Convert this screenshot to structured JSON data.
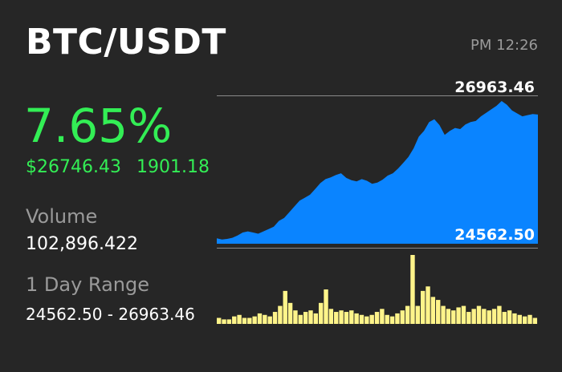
{
  "header": {
    "pair": "BTC/USDT",
    "time": "PM 12:26"
  },
  "stats": {
    "change_percent": "7.65%",
    "price": "$26746.43",
    "change_amount": "1901.18",
    "volume_label": "Volume",
    "volume_value": "102,896.422",
    "range_label": "1 Day Range",
    "range_value": "24562.50 - 26963.46"
  },
  "chart_data": {
    "type": "area",
    "high_label": "26963.46",
    "low_label": "24562.50",
    "ylim": [
      24562.5,
      26963.46
    ],
    "price_series": [
      24600,
      24580,
      24590,
      24610,
      24650,
      24700,
      24720,
      24700,
      24680,
      24720,
      24760,
      24800,
      24900,
      24950,
      25050,
      25150,
      25250,
      25300,
      25350,
      25450,
      25550,
      25620,
      25650,
      25690,
      25720,
      25640,
      25600,
      25580,
      25620,
      25590,
      25540,
      25560,
      25610,
      25680,
      25720,
      25800,
      25900,
      26000,
      26150,
      26350,
      26450,
      26600,
      26650,
      26550,
      26380,
      26450,
      26500,
      26480,
      26560,
      26600,
      26620,
      26700,
      26760,
      26820,
      26880,
      26963.46,
      26900,
      26800,
      26750,
      26700,
      26720,
      26740,
      26730
    ],
    "volume_series": [
      4,
      3,
      3,
      5,
      6,
      4,
      4,
      5,
      7,
      6,
      5,
      8,
      12,
      22,
      14,
      9,
      6,
      8,
      9,
      7,
      14,
      23,
      10,
      8,
      9,
      8,
      9,
      7,
      6,
      5,
      6,
      8,
      10,
      6,
      5,
      7,
      9,
      12,
      46,
      12,
      22,
      25,
      18,
      16,
      12,
      10,
      9,
      11,
      12,
      8,
      10,
      12,
      10,
      9,
      10,
      12,
      8,
      9,
      7,
      6,
      5,
      6,
      4
    ],
    "colors": {
      "area": "#0a84ff",
      "volume": "#fff48a",
      "gridline": "#8a8a8a"
    }
  }
}
